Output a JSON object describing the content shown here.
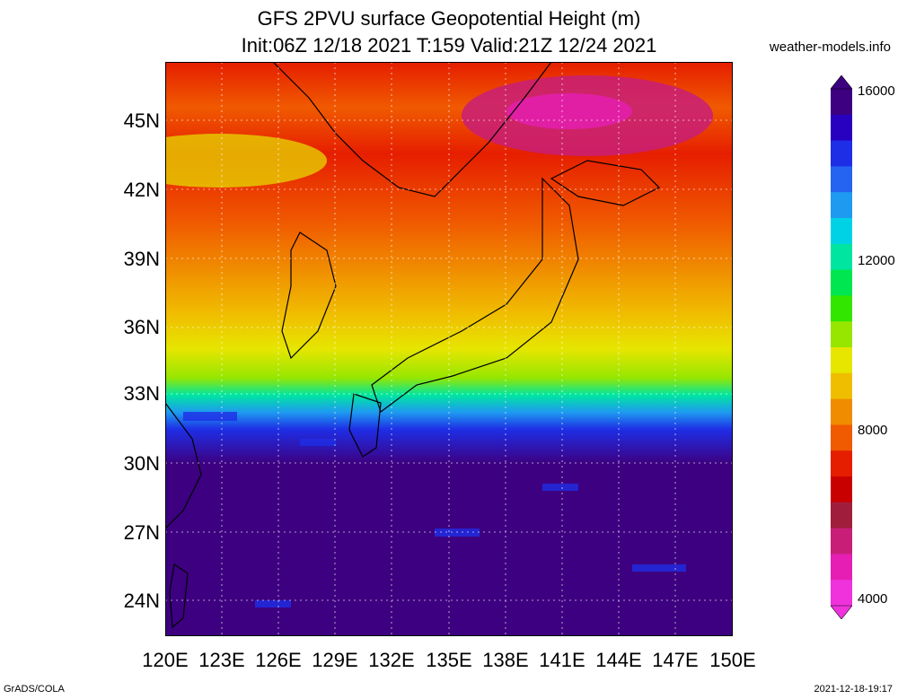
{
  "title": {
    "line1": "GFS 2PVU surface Geopotential Height (m)",
    "line2": "Init:06Z 12/18 2021 T:159 Valid:21Z 12/24 2021"
  },
  "site": "weather-models.info",
  "footer": {
    "left": "GrADS/COLA",
    "right": "2021-12-18-19:17"
  },
  "map": {
    "lat_labels": [
      "45N",
      "42N",
      "39N",
      "36N",
      "33N",
      "30N",
      "27N",
      "24N"
    ],
    "lon_labels": [
      "120E",
      "123E",
      "126E",
      "129E",
      "132E",
      "135E",
      "138E",
      "141E",
      "144E",
      "147E",
      "150E"
    ]
  },
  "colorbar": {
    "labels": [
      "16000",
      "12000",
      "8000",
      "4000"
    ],
    "colors": [
      "#3d0080",
      "#2800c0",
      "#1e2ee6",
      "#2464f0",
      "#1e9bf0",
      "#00d2e6",
      "#00e6a0",
      "#00e650",
      "#32e600",
      "#96e600",
      "#e6e600",
      "#f0be00",
      "#f08c00",
      "#f05a00",
      "#e61e00",
      "#c80000",
      "#a01e3c",
      "#c81e78",
      "#e61eb4",
      "#f032dc"
    ]
  }
}
